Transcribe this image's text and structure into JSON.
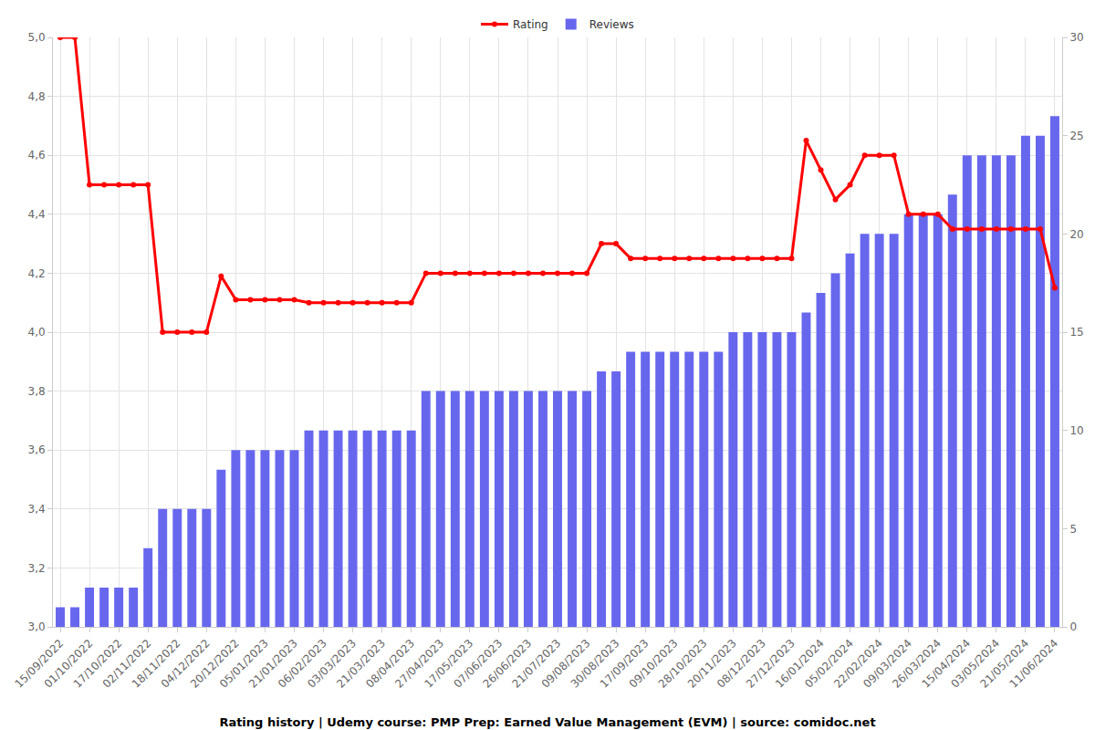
{
  "chart_data": {
    "type": "bar",
    "title": "Rating history | Udemy course: PMP Prep: Earned Value Management (EVM) | source: comidoc.net",
    "categories": [
      "15/09/2022",
      null,
      "01/10/2022",
      null,
      "17/10/2022",
      null,
      "02/11/2022",
      null,
      "18/11/2022",
      null,
      "04/12/2022",
      null,
      "20/12/2022",
      null,
      "05/01/2023",
      null,
      "21/01/2023",
      null,
      "06/02/2023",
      null,
      "03/03/2023",
      null,
      "21/03/2023",
      null,
      "08/04/2023",
      null,
      "27/04/2023",
      null,
      "17/05/2023",
      null,
      "07/06/2023",
      null,
      "26/06/2023",
      null,
      "21/07/2023",
      null,
      "09/08/2023",
      null,
      "30/08/2023",
      null,
      "17/09/2023",
      null,
      "09/10/2023",
      null,
      "28/10/2023",
      null,
      "20/11/2023",
      null,
      "08/12/2023",
      null,
      "27/12/2023",
      null,
      "16/01/2024",
      null,
      "05/02/2024",
      null,
      "22/02/2024",
      null,
      "09/03/2024",
      null,
      "26/03/2024",
      null,
      "15/04/2024",
      null,
      "03/05/2024",
      null,
      "21/05/2024",
      null,
      "11/06/2024"
    ],
    "series": [
      {
        "name": "Reviews",
        "type": "bar",
        "color": "#6767ee",
        "axis": "y2",
        "values": [
          1,
          1,
          2,
          2,
          2,
          2,
          4,
          6,
          6,
          6,
          6,
          8,
          9,
          9,
          9,
          9,
          9,
          10,
          10,
          10,
          10,
          10,
          10,
          10,
          10,
          12,
          12,
          12,
          12,
          12,
          12,
          12,
          12,
          12,
          12,
          12,
          12,
          13,
          13,
          14,
          14,
          14,
          14,
          14,
          14,
          14,
          15,
          15,
          15,
          15,
          15,
          16,
          17,
          18,
          19,
          20,
          20,
          20,
          21,
          21,
          21,
          22,
          24,
          24,
          24,
          24,
          25,
          25,
          26
        ]
      },
      {
        "name": "Rating",
        "type": "line",
        "color": "#ff0000",
        "marker": "circle",
        "values": [
          5,
          5,
          4.5,
          4.5,
          4.5,
          4.5,
          4.5,
          4,
          4,
          4,
          4,
          4.19,
          4.11,
          4.11,
          4.11,
          4.11,
          4.11,
          4.1,
          4.1,
          4.1,
          4.1,
          4.1,
          4.1,
          4.1,
          4.1,
          4.2,
          4.2,
          4.2,
          4.2,
          4.2,
          4.2,
          4.2,
          4.2,
          4.2,
          4.2,
          4.2,
          4.2,
          4.3,
          4.3,
          4.25,
          4.25,
          4.25,
          4.25,
          4.25,
          4.25,
          4.25,
          4.25,
          4.25,
          4.25,
          4.25,
          4.25,
          4.65,
          4.55,
          4.45,
          4.5,
          4.6,
          4.6,
          4.6,
          4.4,
          4.4,
          4.4,
          4.35,
          4.35,
          4.35,
          4.35,
          4.35,
          4.35,
          4.35,
          4.15
        ]
      }
    ],
    "ylim": [
      3,
      5
    ],
    "yticks": [
      {
        "value": 3,
        "label": "3,0"
      },
      {
        "value": 3.2,
        "label": "3,2"
      },
      {
        "value": 3.4,
        "label": "3,4"
      },
      {
        "value": 3.6,
        "label": "3,6"
      },
      {
        "value": 3.8,
        "label": "3,8"
      },
      {
        "value": 4,
        "label": "4,0"
      },
      {
        "value": 4.2,
        "label": "4,2"
      },
      {
        "value": 4.4,
        "label": "4,4"
      },
      {
        "value": 4.6,
        "label": "4,6"
      },
      {
        "value": 4.8,
        "label": "4,8"
      },
      {
        "value": 5,
        "label": "5,0"
      }
    ],
    "y2lim": [
      0,
      30
    ],
    "y2ticks": [
      0,
      5,
      10,
      15,
      20,
      25,
      30
    ],
    "grid": true,
    "legend": "top"
  }
}
